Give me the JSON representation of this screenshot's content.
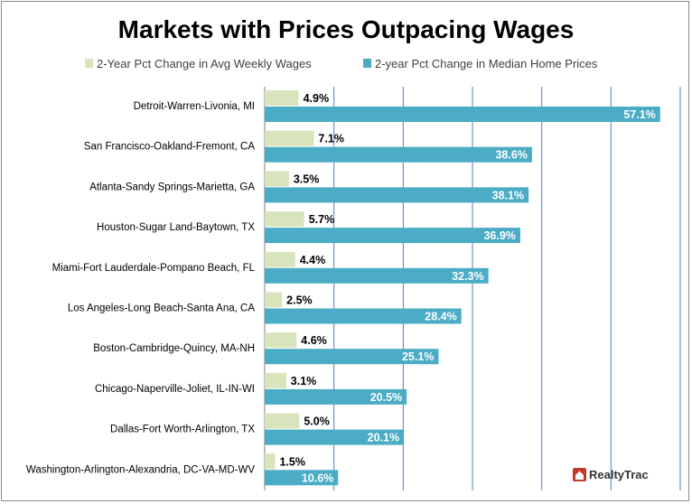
{
  "colors": {
    "wages": "#d8e4bc",
    "prices": "#4bacc6",
    "gridline": "#4f81bd",
    "axis": "#808080",
    "logo_accent": "#c0392b"
  },
  "logo": {
    "text": "RealtyTrac",
    "icon": "house-logo-icon"
  },
  "chart_data": {
    "type": "bar",
    "orientation": "horizontal",
    "title": "Markets with Prices Outpacing Wages",
    "legend_position": "top",
    "grid": true,
    "xlim": [
      0,
      60
    ],
    "categories": [
      "Detroit-Warren-Livonia, MI",
      "San Francisco-Oakland-Fremont, CA",
      "Atlanta-Sandy Springs-Marietta, GA",
      "Houston-Sugar Land-Baytown, TX",
      "Miami-Fort Lauderdale-Pompano Beach, FL",
      "Los Angeles-Long Beach-Santa Ana, CA",
      "Boston-Cambridge-Quincy, MA-NH",
      "Chicago-Naperville-Joliet, IL-IN-WI",
      "Dallas-Fort Worth-Arlington, TX",
      "Washington-Arlington-Alexandria, DC-VA-MD-WV"
    ],
    "series": [
      {
        "name": "2-Year Pct Change in Avg Weekly Wages",
        "values": [
          4.9,
          7.1,
          3.5,
          5.7,
          4.4,
          2.5,
          4.6,
          3.1,
          5.0,
          1.5
        ],
        "labels": [
          "4.9%",
          "7.1%",
          "3.5%",
          "5.7%",
          "4.4%",
          "2.5%",
          "4.6%",
          "3.1%",
          "5.0%",
          "1.5%"
        ]
      },
      {
        "name": "2-year Pct Change in Median Home Prices",
        "values": [
          57.1,
          38.6,
          38.1,
          36.9,
          32.3,
          28.4,
          25.1,
          20.5,
          20.1,
          10.6
        ],
        "labels": [
          "57.1%",
          "38.6%",
          "38.1%",
          "36.9%",
          "32.3%",
          "28.4%",
          "25.1%",
          "20.5%",
          "20.1%",
          "10.6%"
        ]
      }
    ]
  }
}
